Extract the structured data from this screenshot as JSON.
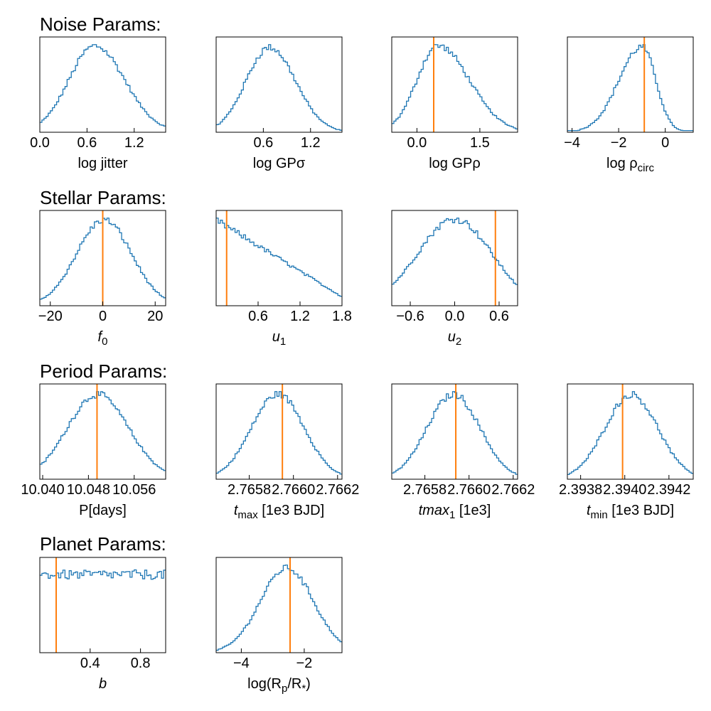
{
  "colors": {
    "hist": "#1f77b4",
    "truth": "#ff7f0e",
    "axes": "#000000"
  },
  "groups": [
    {
      "title": "Noise Params:"
    },
    {
      "title": "Stellar Params:"
    },
    {
      "title": "Period Params:"
    },
    {
      "title": "Planet Params:"
    }
  ],
  "chart_data": [
    {
      "type": "histogram",
      "group": 0,
      "col": 0,
      "xlabel": "log jitter",
      "xlim": [
        0.0,
        1.6
      ],
      "ticks": [
        0.0,
        0.6,
        1.2
      ],
      "tick_labels": [
        "0.0",
        "0.6",
        "1.2"
      ],
      "shape": "peak",
      "peak": 0.7,
      "sigma_left": 0.33,
      "sigma_right": 0.38,
      "truth": null
    },
    {
      "type": "histogram",
      "group": 0,
      "col": 1,
      "xlabel": "log GPσ",
      "xlim": [
        0.0,
        1.6
      ],
      "ticks": [
        0.6,
        1.2
      ],
      "tick_labels": [
        "0.6",
        "1.2"
      ],
      "shape": "peak",
      "peak": 0.68,
      "sigma_left": 0.3,
      "sigma_right": 0.33,
      "truth": null
    },
    {
      "type": "histogram",
      "group": 0,
      "col": 2,
      "xlabel": "log GPρ",
      "xlim": [
        -0.6,
        2.4
      ],
      "ticks": [
        0.0,
        1.5
      ],
      "tick_labels": [
        "0.0",
        "1.5"
      ],
      "shape": "peak",
      "peak": 0.5,
      "sigma_left": 0.5,
      "sigma_right": 0.75,
      "truth": 0.4
    },
    {
      "type": "histogram",
      "group": 0,
      "col": 3,
      "xlabel": "log ρ",
      "xlabel_sub": "circ",
      "xlim": [
        -4.2,
        1.2
      ],
      "ticks": [
        -4,
        -2,
        0
      ],
      "tick_labels": [
        "−4",
        "−2",
        "0"
      ],
      "shape": "peak",
      "peak": -1.0,
      "sigma_left": 1.0,
      "sigma_right": 0.6,
      "truth": -0.9
    },
    {
      "type": "histogram",
      "group": 1,
      "col": 0,
      "xlabel": "f",
      "xlabel_sub": "0",
      "xlim": [
        -24,
        24
      ],
      "ticks": [
        -20,
        0,
        20
      ],
      "tick_labels": [
        "−20",
        "0",
        "20"
      ],
      "shape": "peak",
      "peak": 0.5,
      "sigma_left": 10.5,
      "sigma_right": 10.5,
      "truth": 0.0
    },
    {
      "type": "histogram",
      "group": 1,
      "col": 1,
      "xlabel": "u",
      "xlabel_sub": "1",
      "xlim": [
        0.0,
        1.8
      ],
      "ticks": [
        0.6,
        1.2,
        1.8
      ],
      "tick_labels": [
        "0.6",
        "1.2",
        "1.8"
      ],
      "shape": "linear",
      "y_start": 0.95,
      "y_end": 0.1,
      "truth": 0.15
    },
    {
      "type": "histogram",
      "group": 1,
      "col": 2,
      "xlabel": "u",
      "xlabel_sub": "2",
      "xlim": [
        -0.85,
        0.85
      ],
      "ticks": [
        -0.6,
        0.0,
        0.6
      ],
      "tick_labels": [
        "−0.6",
        "0.0",
        "0.6"
      ],
      "shape": "peak",
      "peak": 0.0,
      "sigma_left": 0.5,
      "sigma_right": 0.5,
      "truth": 0.55
    },
    {
      "type": "histogram",
      "group": 2,
      "col": 0,
      "xlabel": "P[days]",
      "xlim": [
        10.0395,
        10.0615
      ],
      "ticks": [
        10.04,
        10.048,
        10.056
      ],
      "tick_labels": [
        "10.040",
        "10.048",
        "10.056"
      ],
      "shape": "peak",
      "peak": 10.0495,
      "sigma_left": 0.0052,
      "sigma_right": 0.0055,
      "truth": 10.0495
    },
    {
      "type": "histogram",
      "group": 2,
      "col": 1,
      "xlabel": "t",
      "xlabel_sub": "max",
      "xlabel_tail": "[1e3  BJD]",
      "xlim": [
        2.76565,
        2.76622
      ],
      "ticks": [
        2.7658,
        2.766,
        2.7662
      ],
      "tick_labels": [
        "2.7658",
        "2.7660",
        "2.7662"
      ],
      "shape": "peak",
      "peak": 2.76593,
      "sigma_left": 0.00012,
      "sigma_right": 0.00012,
      "truth": 2.76595
    },
    {
      "type": "histogram",
      "group": 2,
      "col": 2,
      "xlabel": "tmax",
      "xlabel_sub": "1",
      "xlabel_tail": "[1e3]",
      "xlim": [
        2.76565,
        2.76622
      ],
      "ticks": [
        2.7658,
        2.766,
        2.7662
      ],
      "tick_labels": [
        "2.7658",
        "2.7660",
        "2.7662"
      ],
      "shape": "peak",
      "peak": 2.76593,
      "sigma_left": 0.00012,
      "sigma_right": 0.00012,
      "truth": 2.76594
    },
    {
      "type": "histogram",
      "group": 2,
      "col": 3,
      "xlabel": "t",
      "xlabel_sub": "min",
      "xlabel_tail": "[1e3  BJD]",
      "xlim": [
        2.39374,
        2.39431
      ],
      "ticks": [
        2.3938,
        2.394,
        2.3942
      ],
      "tick_labels": [
        "2.3938",
        "2.3940",
        "2.3942"
      ],
      "shape": "peak",
      "peak": 2.39403,
      "sigma_left": 0.00012,
      "sigma_right": 0.00012,
      "truth": 2.39399
    },
    {
      "type": "histogram",
      "group": 3,
      "col": 0,
      "xlabel": "b",
      "xlim": [
        0.0,
        1.0
      ],
      "ticks": [
        0.4,
        0.8
      ],
      "tick_labels": [
        "0.4",
        "0.8"
      ],
      "shape": "flat",
      "level": 0.82,
      "truth": 0.13
    },
    {
      "type": "histogram",
      "group": 3,
      "col": 1,
      "xlabel": "log(R",
      "xlabel_sub": "p",
      "xlabel_tail2": "/R",
      "xlabel_sub2": "*",
      "xlabel_end": ")",
      "xlim": [
        -4.8,
        -0.8
      ],
      "ticks": [
        -4,
        -2
      ],
      "tick_labels": [
        "−4",
        "−2"
      ],
      "shape": "peak",
      "peak": -2.55,
      "sigma_left": 0.85,
      "sigma_right": 0.85,
      "truth": -2.45
    }
  ]
}
